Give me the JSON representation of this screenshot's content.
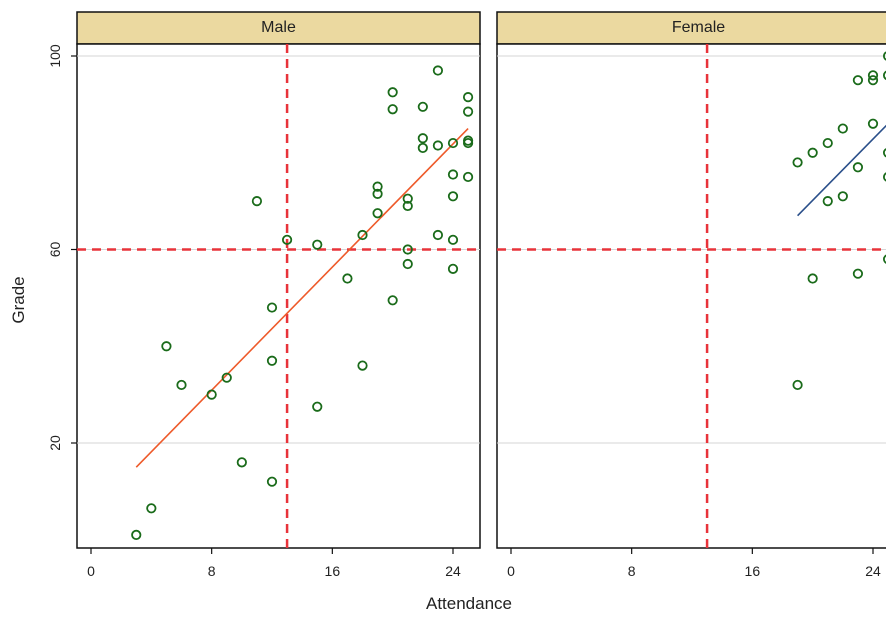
{
  "chart_data": {
    "type": "scatter",
    "xlabel": "Attendance",
    "ylabel": "Grade",
    "xlim": [
      -1,
      26
    ],
    "ylim": [
      0,
      102
    ],
    "x_ticks": [
      0,
      8,
      16,
      24
    ],
    "y_ticks": [
      20,
      60,
      100
    ],
    "reference_lines": {
      "vertical_x": 13,
      "horizontal_y": 60
    },
    "colors": {
      "points": "#1a6b1a",
      "male_fit": "#ee5a2a",
      "female_fit": "#2a4f8a",
      "reference": "#e8333a",
      "strip": "#ebd9a0"
    },
    "panels": [
      {
        "strip": "Male",
        "fit_color": "#ee5a2a",
        "points": [
          [
            3,
            1
          ],
          [
            4,
            6.5
          ],
          [
            5,
            40
          ],
          [
            6,
            32
          ],
          [
            8,
            30
          ],
          [
            9,
            33.5
          ],
          [
            10,
            16
          ],
          [
            11,
            70
          ],
          [
            12,
            12
          ],
          [
            12,
            37
          ],
          [
            12,
            48
          ],
          [
            13,
            62
          ],
          [
            15,
            27.5
          ],
          [
            15,
            61
          ],
          [
            17,
            54
          ],
          [
            18,
            36
          ],
          [
            18,
            63
          ],
          [
            19,
            67.5
          ],
          [
            19,
            71.5
          ],
          [
            19,
            73
          ],
          [
            20,
            49.5
          ],
          [
            20,
            89
          ],
          [
            20,
            92.5
          ],
          [
            21,
            57
          ],
          [
            21,
            60
          ],
          [
            21,
            69
          ],
          [
            21,
            70.5
          ],
          [
            22,
            81
          ],
          [
            22,
            83
          ],
          [
            22,
            89.5
          ],
          [
            23,
            63
          ],
          [
            23,
            81.5
          ],
          [
            23,
            97
          ],
          [
            24,
            56
          ],
          [
            24,
            62
          ],
          [
            24,
            71
          ],
          [
            24,
            75.5
          ],
          [
            24,
            82
          ],
          [
            25,
            75
          ],
          [
            25,
            82
          ],
          [
            25,
            82.5
          ],
          [
            25,
            88.5
          ],
          [
            25,
            91.5
          ]
        ],
        "fit": [
          [
            3,
            15
          ],
          [
            25,
            85
          ]
        ]
      },
      {
        "strip": "Female",
        "fit_color": "#2a4f8a",
        "points": [
          [
            19,
            32
          ],
          [
            19,
            78
          ],
          [
            20,
            54
          ],
          [
            20,
            80
          ],
          [
            21,
            70
          ],
          [
            21,
            82
          ],
          [
            22,
            71
          ],
          [
            22,
            85
          ],
          [
            23,
            55
          ],
          [
            23,
            77
          ],
          [
            23,
            95
          ],
          [
            24,
            95
          ],
          [
            24,
            96
          ],
          [
            24,
            86
          ],
          [
            25,
            58
          ],
          [
            25,
            75
          ],
          [
            25,
            80
          ],
          [
            25,
            96
          ],
          [
            25,
            100
          ]
        ],
        "fit": [
          [
            19,
            67
          ],
          [
            25,
            86
          ]
        ]
      }
    ]
  }
}
